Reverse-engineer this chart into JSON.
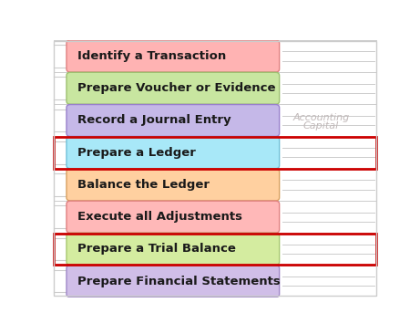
{
  "steps": [
    {
      "label": "Identify a Transaction",
      "fill": "#FFB3B3",
      "edge": "#E08080",
      "has_red_border": false
    },
    {
      "label": "Prepare Voucher or Evidence",
      "fill": "#C8E6A0",
      "edge": "#9DC070",
      "has_red_border": false
    },
    {
      "label": "Record a Journal Entry",
      "fill": "#C5B8E8",
      "edge": "#9980CC",
      "has_red_border": false
    },
    {
      "label": "Prepare a Ledger",
      "fill": "#A8E8F8",
      "edge": "#70C0D8",
      "has_red_border": true
    },
    {
      "label": "Balance the Ledger",
      "fill": "#FFD0A0",
      "edge": "#D8A060",
      "has_red_border": false
    },
    {
      "label": "Execute all Adjustments",
      "fill": "#FFB8B8",
      "edge": "#E08080",
      "has_red_border": false
    },
    {
      "label": "Prepare a Trial Balance",
      "fill": "#D4ECA0",
      "edge": "#A8C870",
      "has_red_border": true
    },
    {
      "label": "Prepare Financial Statements",
      "fill": "#D0BEE8",
      "edge": "#A088C8",
      "has_red_border": false
    }
  ],
  "watermark_line1": "Accounting",
  "watermark_line2": "Capital",
  "watermark_color": "#C0B8B8",
  "bg_color": "#FFFFFF",
  "sep_color": "#CCCCCC",
  "outer_border_color": "#CCCCCC",
  "red_border_color": "#CC0000",
  "font_size": 9.5,
  "watermark_font_size": 8
}
